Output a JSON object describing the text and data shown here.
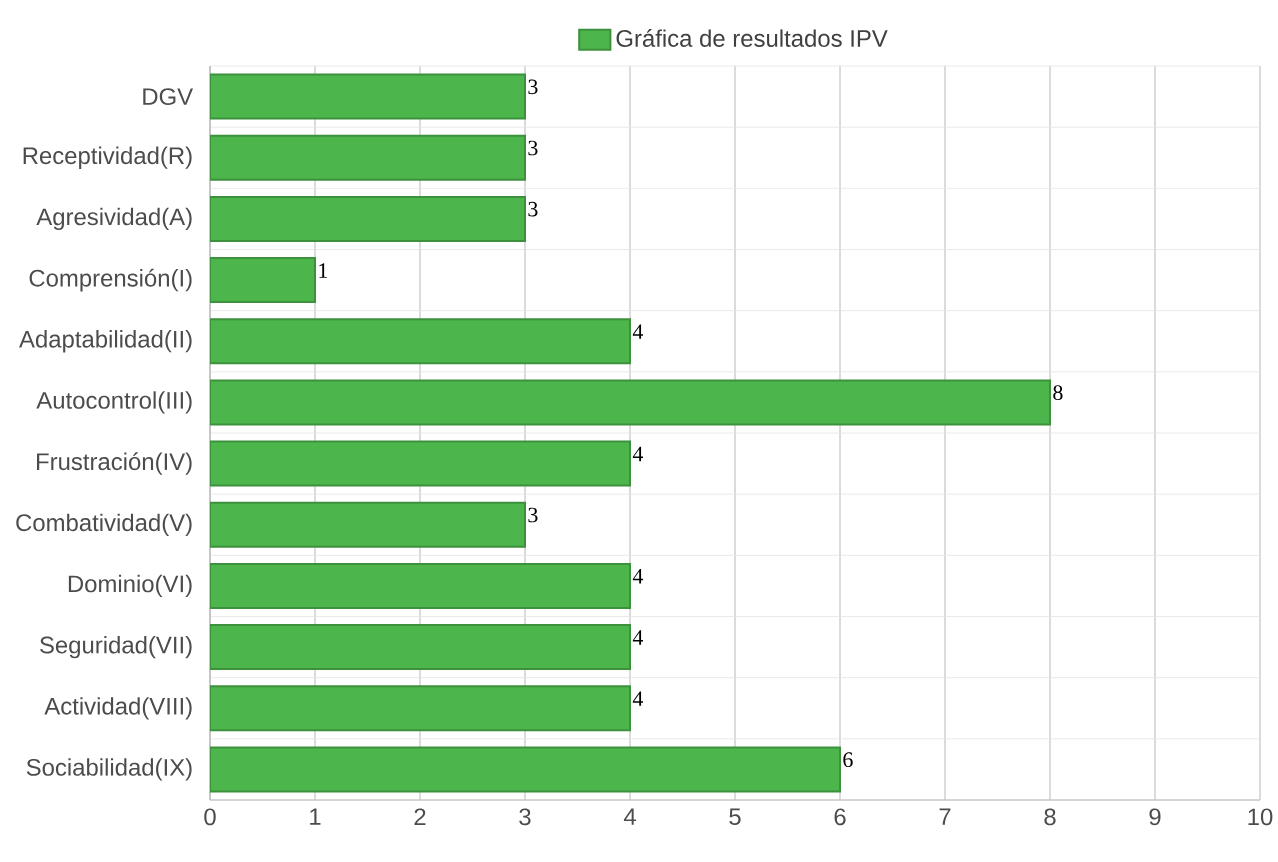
{
  "chart_data": {
    "type": "bar",
    "orientation": "horizontal",
    "categories": [
      "DGV",
      "Receptividad(R)",
      "Agresividad(A)",
      "Comprensión(I)",
      "Adaptabilidad(II)",
      "Autocontrol(III)",
      "Frustración(IV)",
      "Combatividad(V)",
      "Dominio(VI)",
      "Seguridad(VII)",
      "Actividad(VIII)",
      "Sociabilidad(IX)"
    ],
    "series": [
      {
        "name": "Gráfica de resultados IPV",
        "color": "#4cb54c",
        "values": [
          3,
          3,
          3,
          1,
          4,
          8,
          4,
          3,
          4,
          4,
          4,
          6
        ]
      }
    ],
    "xlim": [
      0,
      10
    ],
    "xticks": [
      0,
      1,
      2,
      3,
      4,
      5,
      6,
      7,
      8,
      9,
      10
    ],
    "grid": true,
    "legend": "top",
    "data_labels": true
  }
}
